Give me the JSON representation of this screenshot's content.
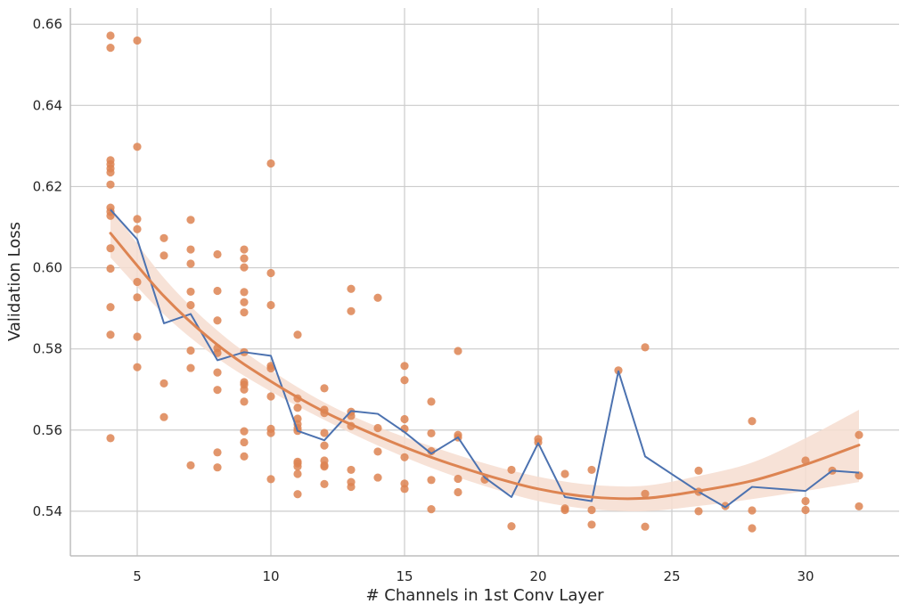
{
  "chart_data": {
    "type": "scatter",
    "xlabel": "# Channels in 1st Conv Layer",
    "ylabel": "Validation Loss",
    "xlim": [
      2.5,
      33.5
    ],
    "ylim": [
      0.529,
      0.664
    ],
    "x_ticks": [
      5,
      10,
      15,
      20,
      25,
      30
    ],
    "x_tick_labels": [
      "5",
      "10",
      "15",
      "20",
      "25",
      "30"
    ],
    "y_ticks": [
      0.54,
      0.56,
      0.58,
      0.6,
      0.62,
      0.64,
      0.66
    ],
    "y_tick_labels": [
      "0.54",
      "0.56",
      "0.58",
      "0.60",
      "0.62",
      "0.64",
      "0.66"
    ],
    "grid": true,
    "colors": {
      "points": "#dd8452",
      "fit": "#dd8452",
      "band": "#f6ddd0",
      "mean_line": "#4c72b0",
      "grid": "#cccccc",
      "spine": "#bdbdbd"
    },
    "series": [
      {
        "type": "scatter",
        "points": [
          [
            4,
            0.6572
          ],
          [
            4,
            0.6542
          ],
          [
            4,
            0.6265
          ],
          [
            4,
            0.6255
          ],
          [
            4,
            0.6245
          ],
          [
            4,
            0.6235
          ],
          [
            4,
            0.6205
          ],
          [
            4,
            0.6148
          ],
          [
            4,
            0.6138
          ],
          [
            4,
            0.6128
          ],
          [
            4,
            0.6048
          ],
          [
            4,
            0.5998
          ],
          [
            4,
            0.5903
          ],
          [
            4,
            0.5835
          ],
          [
            4,
            0.558
          ],
          [
            5,
            0.656
          ],
          [
            5,
            0.6298
          ],
          [
            5,
            0.612
          ],
          [
            5,
            0.6095
          ],
          [
            5,
            0.5965
          ],
          [
            5,
            0.5927
          ],
          [
            5,
            0.583
          ],
          [
            5,
            0.5755
          ],
          [
            6,
            0.6073
          ],
          [
            6,
            0.603
          ],
          [
            6,
            0.5715
          ],
          [
            6,
            0.5632
          ],
          [
            7,
            0.6118
          ],
          [
            7,
            0.6045
          ],
          [
            7,
            0.601
          ],
          [
            7,
            0.5941
          ],
          [
            7,
            0.5908
          ],
          [
            7,
            0.5796
          ],
          [
            7,
            0.5753
          ],
          [
            7,
            0.5513
          ],
          [
            8,
            0.6033
          ],
          [
            8,
            0.5943
          ],
          [
            8,
            0.587
          ],
          [
            8,
            0.5802
          ],
          [
            8,
            0.579
          ],
          [
            8,
            0.5742
          ],
          [
            8,
            0.5699
          ],
          [
            8,
            0.5545
          ],
          [
            8,
            0.5508
          ],
          [
            9,
            0.6045
          ],
          [
            9,
            0.6023
          ],
          [
            9,
            0.6001
          ],
          [
            9,
            0.594
          ],
          [
            9,
            0.5915
          ],
          [
            9,
            0.589
          ],
          [
            9,
            0.5792
          ],
          [
            9,
            0.5718
          ],
          [
            9,
            0.5712
          ],
          [
            9,
            0.57
          ],
          [
            9,
            0.567
          ],
          [
            9,
            0.5597
          ],
          [
            9,
            0.557
          ],
          [
            9,
            0.5535
          ],
          [
            10,
            0.6257
          ],
          [
            10,
            0.5987
          ],
          [
            10,
            0.5908
          ],
          [
            10,
            0.5758
          ],
          [
            10,
            0.5752
          ],
          [
            10,
            0.5683
          ],
          [
            10,
            0.5603
          ],
          [
            10,
            0.5593
          ],
          [
            10,
            0.5479
          ],
          [
            11,
            0.5835
          ],
          [
            11,
            0.5678
          ],
          [
            11,
            0.5655
          ],
          [
            11,
            0.5628
          ],
          [
            11,
            0.5615
          ],
          [
            11,
            0.5605
          ],
          [
            11,
            0.5598
          ],
          [
            11,
            0.5522
          ],
          [
            11,
            0.5518
          ],
          [
            11,
            0.551
          ],
          [
            11,
            0.5492
          ],
          [
            11,
            0.5442
          ],
          [
            12,
            0.5703
          ],
          [
            12,
            0.565
          ],
          [
            12,
            0.5642
          ],
          [
            12,
            0.5593
          ],
          [
            12,
            0.5562
          ],
          [
            12,
            0.5525
          ],
          [
            12,
            0.5513
          ],
          [
            12,
            0.551
          ],
          [
            12,
            0.5467
          ],
          [
            13,
            0.5948
          ],
          [
            13,
            0.5893
          ],
          [
            13,
            0.5645
          ],
          [
            13,
            0.5635
          ],
          [
            13,
            0.561
          ],
          [
            13,
            0.5502
          ],
          [
            13,
            0.5472
          ],
          [
            13,
            0.546
          ],
          [
            14,
            0.5926
          ],
          [
            14,
            0.5605
          ],
          [
            14,
            0.5547
          ],
          [
            14,
            0.5483
          ],
          [
            15,
            0.5758
          ],
          [
            15,
            0.5723
          ],
          [
            15,
            0.5627
          ],
          [
            15,
            0.5603
          ],
          [
            15,
            0.5533
          ],
          [
            15,
            0.5468
          ],
          [
            15,
            0.5455
          ],
          [
            16,
            0.567
          ],
          [
            16,
            0.5592
          ],
          [
            16,
            0.5548
          ],
          [
            16,
            0.5477
          ],
          [
            16,
            0.5405
          ],
          [
            17,
            0.5795
          ],
          [
            17,
            0.5588
          ],
          [
            17,
            0.5582
          ],
          [
            17,
            0.548
          ],
          [
            17,
            0.5447
          ],
          [
            18,
            0.5478
          ],
          [
            19,
            0.5502
          ],
          [
            19,
            0.5363
          ],
          [
            20,
            0.5578
          ],
          [
            20,
            0.557
          ],
          [
            21,
            0.5492
          ],
          [
            21,
            0.5407
          ],
          [
            21,
            0.5403
          ],
          [
            22,
            0.5502
          ],
          [
            22,
            0.5403
          ],
          [
            22,
            0.5367
          ],
          [
            23,
            0.5747
          ],
          [
            24,
            0.5804
          ],
          [
            24,
            0.5443
          ],
          [
            24,
            0.5362
          ],
          [
            26,
            0.55
          ],
          [
            26,
            0.5448
          ],
          [
            26,
            0.54
          ],
          [
            27,
            0.5413
          ],
          [
            28,
            0.5622
          ],
          [
            28,
            0.5402
          ],
          [
            28,
            0.5358
          ],
          [
            30,
            0.5525
          ],
          [
            30,
            0.5425
          ],
          [
            30,
            0.5403
          ],
          [
            31,
            0.55
          ],
          [
            32,
            0.5588
          ],
          [
            32,
            0.5488
          ],
          [
            32,
            0.5412
          ]
        ]
      },
      {
        "type": "line",
        "x": [
          4,
          5,
          6,
          7,
          8,
          9,
          10,
          11,
          12,
          13,
          14,
          15,
          16,
          17,
          18,
          19,
          20,
          21,
          22,
          23,
          24,
          26,
          27,
          28,
          30,
          31,
          32
        ],
        "y": [
          0.6143,
          0.607,
          0.5863,
          0.5886,
          0.5772,
          0.5792,
          0.5783,
          0.5598,
          0.5575,
          0.5647,
          0.564,
          0.5595,
          0.5542,
          0.5582,
          0.5483,
          0.5435,
          0.5568,
          0.5435,
          0.5425,
          0.5745,
          0.5535,
          0.5448,
          0.541,
          0.546,
          0.545,
          0.55,
          0.5495
        ]
      },
      {
        "type": "fit",
        "x": [
          4,
          6,
          8,
          10,
          12,
          14,
          16,
          18,
          20,
          22,
          24,
          26,
          28,
          30,
          32
        ],
        "y": [
          0.6085,
          0.593,
          0.581,
          0.572,
          0.5645,
          0.5585,
          0.5533,
          0.549,
          0.5455,
          0.5435,
          0.5432,
          0.545,
          0.5475,
          0.5515,
          0.5563
        ],
        "band_lower": [
          0.6025,
          0.5885,
          0.5777,
          0.5695,
          0.5625,
          0.5562,
          0.5507,
          0.5462,
          0.5425,
          0.5405,
          0.54,
          0.5413,
          0.543,
          0.545,
          0.5472
        ],
        "band_upper": [
          0.615,
          0.5975,
          0.5845,
          0.5748,
          0.5668,
          0.5608,
          0.556,
          0.5518,
          0.5485,
          0.5465,
          0.5463,
          0.5487,
          0.552,
          0.558,
          0.565
        ]
      }
    ]
  }
}
